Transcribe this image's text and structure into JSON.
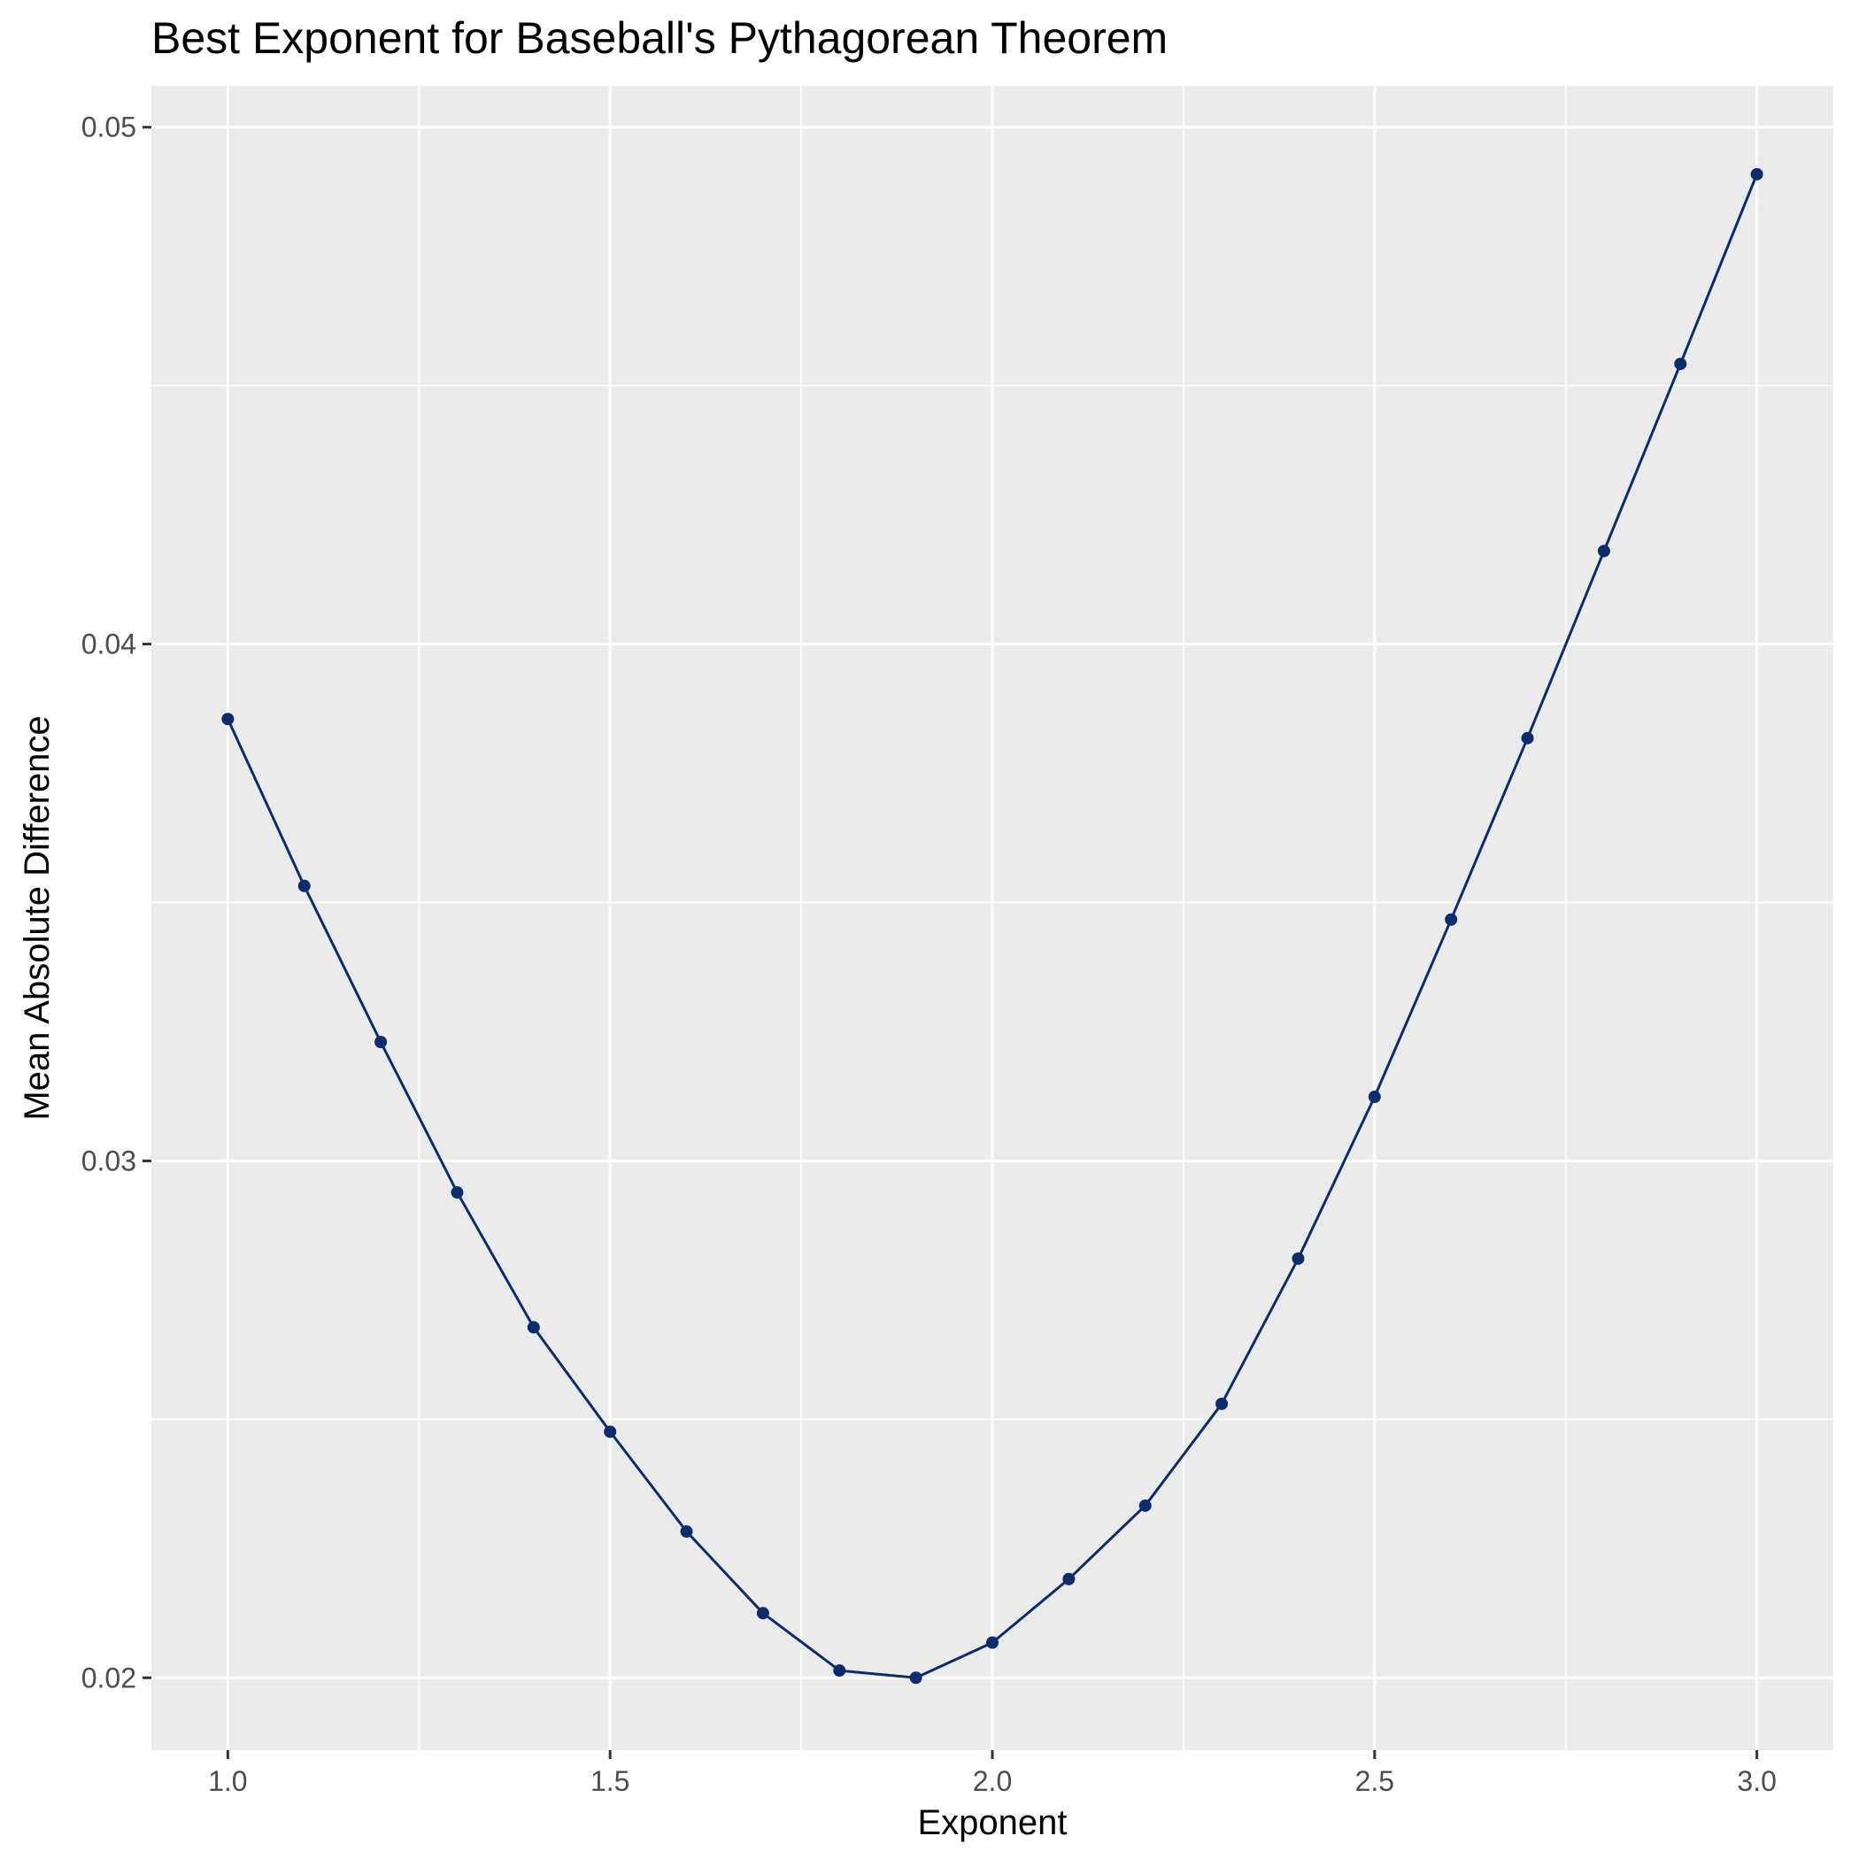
{
  "chart_data": {
    "type": "line",
    "title": "Best Exponent for Baseball's Pythagorean Theorem",
    "xlabel": "Exponent",
    "ylabel": "Mean Absolute Difference",
    "xlim": [
      0.9,
      3.1
    ],
    "ylim": [
      0.0186,
      0.0508
    ],
    "x_ticks": [
      1.0,
      1.5,
      2.0,
      2.5,
      3.0
    ],
    "x_tick_labels": [
      "1.0",
      "1.5",
      "2.0",
      "2.5",
      "3.0"
    ],
    "x_minor_ticks": [
      1.25,
      1.75,
      2.25,
      2.75
    ],
    "y_ticks": [
      0.02,
      0.03,
      0.04,
      0.05
    ],
    "y_tick_labels": [
      "0.02",
      "0.03",
      "0.04",
      "0.05"
    ],
    "y_minor_ticks": [
      0.025,
      0.035,
      0.045
    ],
    "grid": true,
    "colors": {
      "panel": "#EBEBEB",
      "grid": "#FFFFFF",
      "series": "#0C2C6E"
    },
    "series": [
      {
        "x": [
          1.0,
          1.1,
          1.2,
          1.3,
          1.4,
          1.5,
          1.6,
          1.7,
          1.8,
          1.9,
          2.0,
          2.1,
          2.2,
          2.3,
          2.4,
          2.5,
          2.6,
          2.7,
          2.8,
          2.9,
          3.0
        ],
        "values": [
          0.03855,
          0.03532,
          0.0323,
          0.02939,
          0.02678,
          0.02476,
          0.02283,
          0.02125,
          0.02014,
          0.02,
          0.02068,
          0.02191,
          0.02333,
          0.0253,
          0.02811,
          0.03124,
          0.03467,
          0.03818,
          0.0418,
          0.04542,
          0.04909
        ]
      }
    ]
  }
}
